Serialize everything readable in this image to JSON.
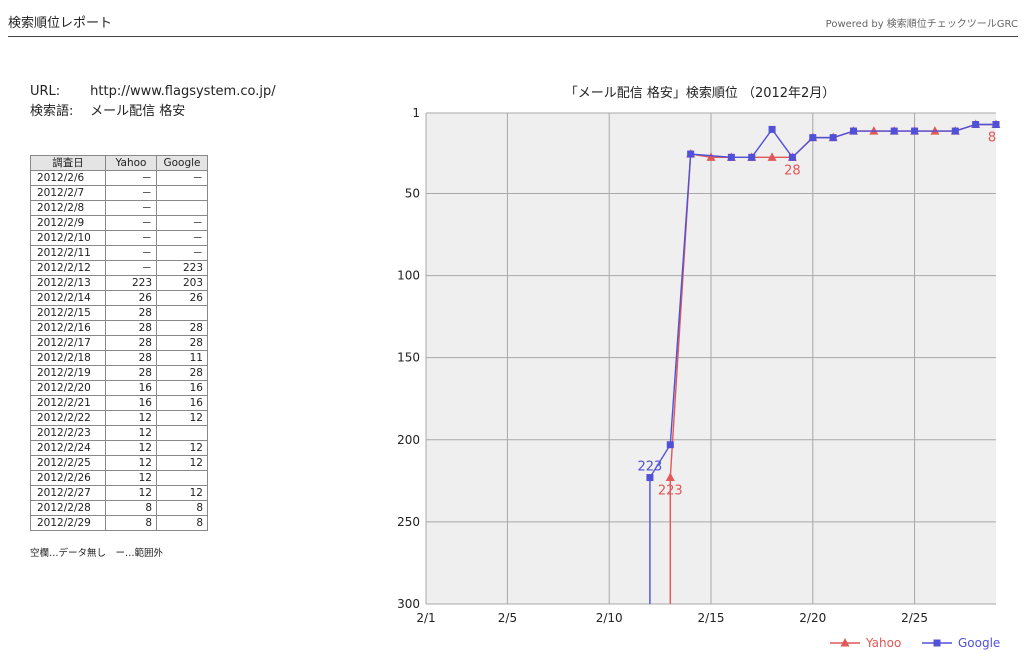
{
  "header": {
    "title": "検索順位レポート",
    "powered": "Powered by 検索順位チェックツールGRC"
  },
  "info": {
    "url_label": "URL:",
    "url": "http://www.flagsystem.co.jp/",
    "keyword_label": "検索語:",
    "keyword": "メール配信 格安"
  },
  "table": {
    "headers": [
      "調査日",
      "Yahoo",
      "Google"
    ],
    "rows": [
      [
        "2012/2/6",
        "－",
        "－"
      ],
      [
        "2012/2/7",
        "－",
        ""
      ],
      [
        "2012/2/8",
        "－",
        ""
      ],
      [
        "2012/2/9",
        "－",
        "－"
      ],
      [
        "2012/2/10",
        "－",
        "－"
      ],
      [
        "2012/2/11",
        "－",
        "－"
      ],
      [
        "2012/2/12",
        "－",
        "223"
      ],
      [
        "2012/2/13",
        "223",
        "203"
      ],
      [
        "2012/2/14",
        "26",
        "26"
      ],
      [
        "2012/2/15",
        "28",
        ""
      ],
      [
        "2012/2/16",
        "28",
        "28"
      ],
      [
        "2012/2/17",
        "28",
        "28"
      ],
      [
        "2012/2/18",
        "28",
        "11"
      ],
      [
        "2012/2/19",
        "28",
        "28"
      ],
      [
        "2012/2/20",
        "16",
        "16"
      ],
      [
        "2012/2/21",
        "16",
        "16"
      ],
      [
        "2012/2/22",
        "12",
        "12"
      ],
      [
        "2012/2/23",
        "12",
        ""
      ],
      [
        "2012/2/24",
        "12",
        "12"
      ],
      [
        "2012/2/25",
        "12",
        "12"
      ],
      [
        "2012/2/26",
        "12",
        ""
      ],
      [
        "2012/2/27",
        "12",
        "12"
      ],
      [
        "2012/2/28",
        "8",
        "8"
      ],
      [
        "2012/2/29",
        "8",
        "8"
      ]
    ]
  },
  "note": "空欄…データ無し　ー…範囲外",
  "chart_data": {
    "type": "line",
    "title": "「メール配信 格安」検索順位 （2012年2月）",
    "x": [
      "2/13",
      "2/14",
      "2/15",
      "2/16",
      "2/17",
      "2/18",
      "2/19",
      "2/20",
      "2/21",
      "2/22",
      "2/23",
      "2/24",
      "2/25",
      "2/26",
      "2/27",
      "2/28",
      "2/29"
    ],
    "xticks": [
      "2/1",
      "2/5",
      "2/10",
      "2/15",
      "2/20",
      "2/25"
    ],
    "xlim": [
      "2/1",
      "2/29"
    ],
    "yticks": [
      1,
      50,
      100,
      150,
      200,
      250,
      300
    ],
    "ylim": [
      1,
      300
    ],
    "y_inverted": true,
    "grid": true,
    "legend_position": "bottom-right",
    "series": [
      {
        "name": "Yahoo",
        "color": "#e05858",
        "marker": "triangle",
        "points": [
          [
            "2/13",
            223
          ],
          [
            "2/14",
            26
          ],
          [
            "2/15",
            28
          ],
          [
            "2/16",
            28
          ],
          [
            "2/17",
            28
          ],
          [
            "2/18",
            28
          ],
          [
            "2/19",
            28
          ],
          [
            "2/20",
            16
          ],
          [
            "2/21",
            16
          ],
          [
            "2/22",
            12
          ],
          [
            "2/23",
            12
          ],
          [
            "2/24",
            12
          ],
          [
            "2/25",
            12
          ],
          [
            "2/26",
            12
          ],
          [
            "2/27",
            12
          ],
          [
            "2/28",
            8
          ],
          [
            "2/29",
            8
          ]
        ],
        "labels": [
          [
            "2/13",
            "223"
          ],
          [
            "2/19",
            "28"
          ],
          [
            "2/29",
            "8"
          ]
        ]
      },
      {
        "name": "Google",
        "color": "#5050d8",
        "marker": "square",
        "points": [
          [
            "2/12",
            223
          ],
          [
            "2/13",
            203
          ],
          [
            "2/14",
            26
          ],
          [
            "2/16",
            28
          ],
          [
            "2/17",
            28
          ],
          [
            "2/18",
            11
          ],
          [
            "2/19",
            28
          ],
          [
            "2/20",
            16
          ],
          [
            "2/21",
            16
          ],
          [
            "2/22",
            12
          ],
          [
            "2/24",
            12
          ],
          [
            "2/25",
            12
          ],
          [
            "2/27",
            12
          ],
          [
            "2/28",
            8
          ],
          [
            "2/29",
            8
          ]
        ],
        "labels": [
          [
            "2/12",
            "223"
          ]
        ]
      }
    ]
  }
}
